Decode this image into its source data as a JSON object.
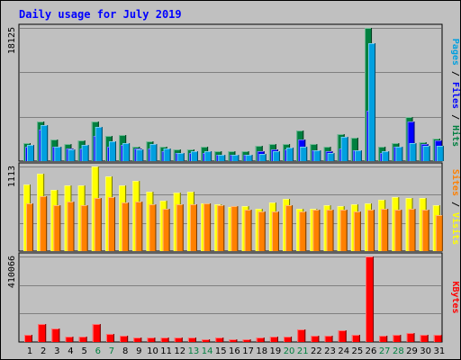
{
  "chart_data": {
    "type": "bar",
    "title": "Daily usage for July 2019",
    "title_color": "#0000ff",
    "categories": [
      "1",
      "2",
      "3",
      "4",
      "5",
      "6",
      "7",
      "8",
      "9",
      "10",
      "11",
      "12",
      "13",
      "14",
      "15",
      "16",
      "17",
      "18",
      "19",
      "20",
      "21",
      "22",
      "23",
      "24",
      "25",
      "26",
      "27",
      "28",
      "29",
      "30",
      "31"
    ],
    "weekend_days": [
      "6",
      "7",
      "13",
      "14",
      "20",
      "21",
      "27",
      "28"
    ],
    "weekday_label_color": "#000000",
    "weekend_label_color": "#008040",
    "panels": [
      {
        "id": "requests",
        "ylim": [
          0,
          18125
        ],
        "max_tick_label": "18125",
        "side_label": {
          "parts": [
            {
              "text": "Pages",
              "color": "#00a0e0"
            },
            {
              "text": " / ",
              "color": "#000000"
            },
            {
              "text": "Files",
              "color": "#0000ff"
            },
            {
              "text": " / ",
              "color": "#000000"
            },
            {
              "text": "Hits",
              "color": "#008040"
            }
          ]
        },
        "series": [
          {
            "name": "Hits",
            "color": "#008040",
            "values": [
              2500,
              5400,
              2900,
              2300,
              2800,
              5400,
              3400,
              3500,
              2000,
              2700,
              1900,
              1650,
              1650,
              2000,
              1400,
              1300,
              1300,
              2100,
              2300,
              2300,
              4200,
              2300,
              1950,
              3700,
              3200,
              18125,
              1900,
              2450,
              6000,
              2600,
              3100
            ]
          },
          {
            "name": "Files",
            "color": "#0000ff",
            "values": [
              1900,
              4300,
              1900,
              1700,
              1700,
              3400,
              2000,
              2200,
              1700,
              1700,
              1300,
              1100,
              1100,
              1100,
              900,
              900,
              800,
              1400,
              1600,
              1600,
              2900,
              1500,
              1300,
              1700,
              1500,
              6900,
              1100,
              2000,
              5400,
              2300,
              2800
            ]
          },
          {
            "name": "Pages",
            "color": "#00a0e0",
            "values": [
              2250,
              4900,
              1900,
              1650,
              2250,
              4600,
              2700,
              2500,
              1600,
              2350,
              1700,
              1100,
              1300,
              1300,
              900,
              900,
              800,
              1000,
              1300,
              1800,
              2000,
              1450,
              1100,
              3250,
              1500,
              16000,
              1350,
              2000,
              2400,
              2100,
              2100
            ]
          }
        ]
      },
      {
        "id": "visits",
        "ylim": [
          0,
          1113
        ],
        "max_tick_label": "1113",
        "side_label": {
          "parts": [
            {
              "text": "Sites",
              "color": "#ff8000"
            },
            {
              "text": " / ",
              "color": "#000000"
            },
            {
              "text": "Visits",
              "color": "#ffff00"
            }
          ]
        },
        "series": [
          {
            "name": "Visits",
            "color": "#ffff00",
            "values": [
              880,
              1020,
              810,
              860,
              860,
              1113,
              980,
              860,
              920,
              780,
              660,
              770,
              780,
              630,
              620,
              580,
              590,
              560,
              640,
              690,
              560,
              560,
              600,
              590,
              620,
              630,
              680,
              710,
              700,
              700,
              600
            ]
          },
          {
            "name": "Sites",
            "color": "#ff8000",
            "values": [
              630,
              720,
              600,
              650,
              600,
              700,
              710,
              640,
              650,
              620,
              560,
              620,
              610,
              630,
              600,
              590,
              550,
              520,
              520,
              600,
              520,
              540,
              550,
              540,
              520,
              550,
              560,
              540,
              560,
              540,
              470
            ]
          }
        ]
      },
      {
        "id": "kbytes",
        "ylim": [
          0,
          410066
        ],
        "max_tick_label": "410066",
        "side_label": {
          "parts": [
            {
              "text": "KBytes",
              "color": "#ff0000"
            }
          ]
        },
        "series": [
          {
            "name": "KBytes",
            "color": "#ff0000",
            "values": [
              35000,
              85000,
              65000,
              25000,
              25000,
              85000,
              40000,
              30000,
              20000,
              20000,
              20000,
              20000,
              20000,
              15000,
              20000,
              15000,
              15000,
              20000,
              25000,
              25000,
              60000,
              30000,
              30000,
              55000,
              35000,
              410066,
              30000,
              35000,
              45000,
              35000,
              35000
            ]
          }
        ]
      }
    ]
  }
}
